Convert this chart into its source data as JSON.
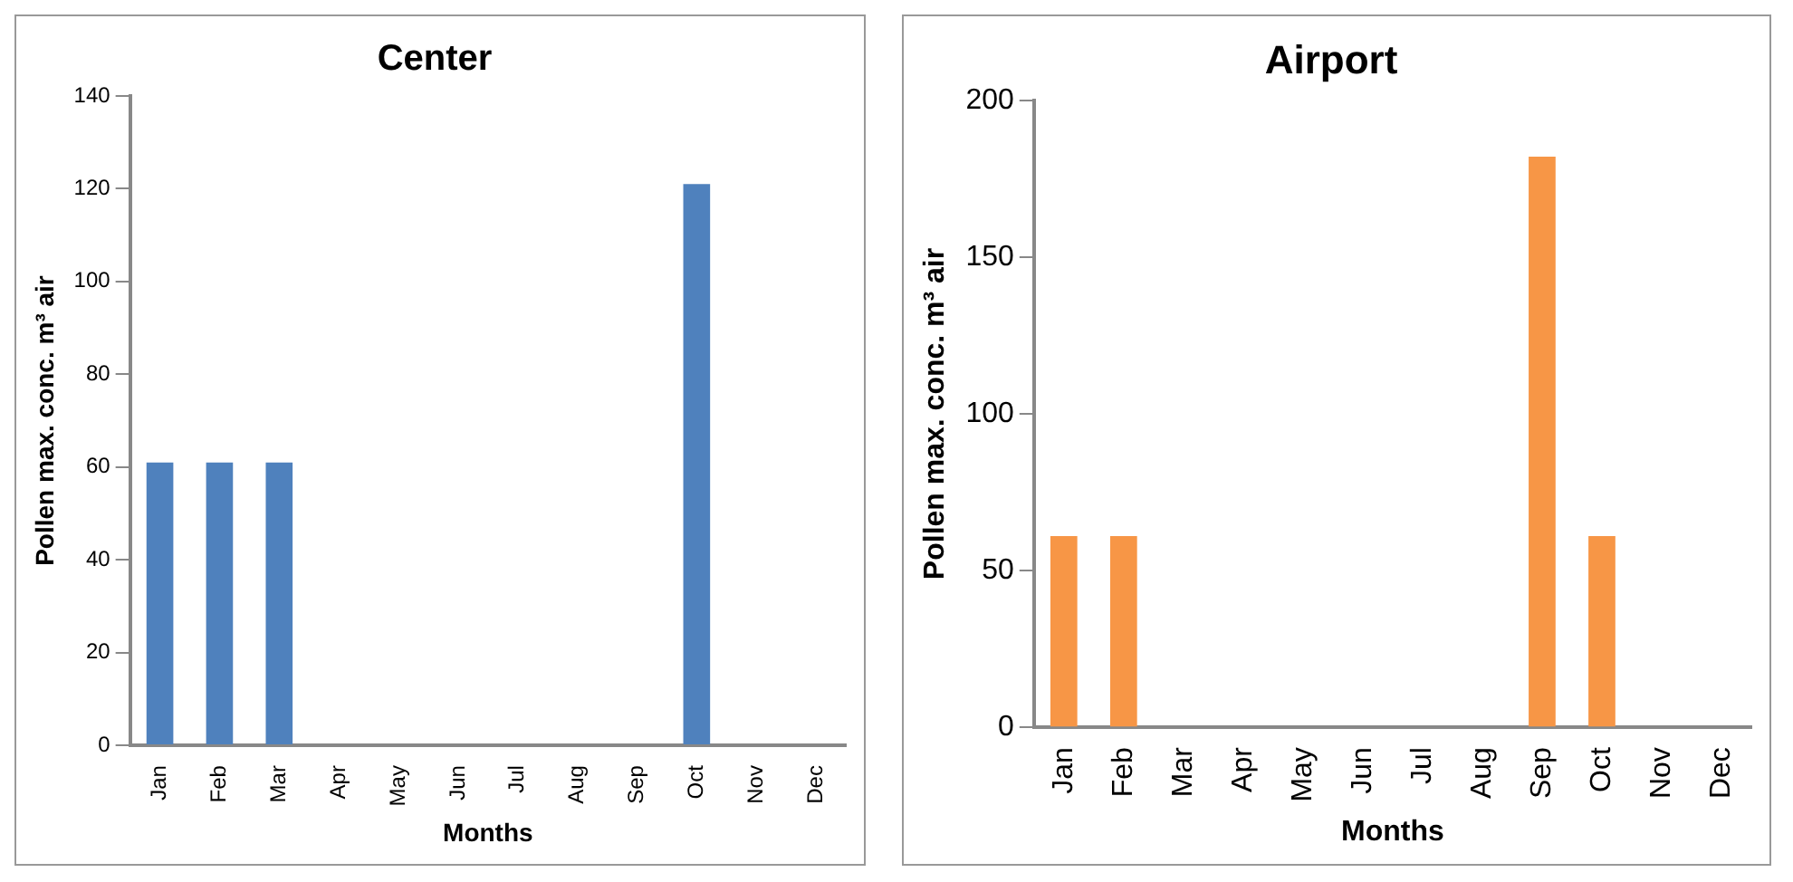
{
  "chart_data": [
    {
      "type": "bar",
      "title": "Center",
      "xlabel": "Months",
      "ylabel": "Pollen max. conc. m³ air",
      "categories": [
        "Jan",
        "Feb",
        "Mar",
        "Apr",
        "May",
        "Jun",
        "Jul",
        "Aug",
        "Sep",
        "Oct",
        "Nov",
        "Dec"
      ],
      "values": [
        61,
        61,
        61,
        0,
        0,
        0,
        0,
        0,
        0,
        121,
        0,
        0
      ],
      "color": "#4f81bd",
      "ylim": [
        0,
        140
      ],
      "yticks": [
        0,
        20,
        40,
        60,
        80,
        100,
        120,
        140
      ],
      "grid": false,
      "legend": false
    },
    {
      "type": "bar",
      "title": "Airport",
      "xlabel": "Months",
      "ylabel": "Pollen max. conc. m³ air",
      "categories": [
        "Jan",
        "Feb",
        "Mar",
        "Apr",
        "May",
        "Jun",
        "Jul",
        "Aug",
        "Sep",
        "Oct",
        "Nov",
        "Dec"
      ],
      "values": [
        61,
        61,
        0,
        0,
        0,
        0,
        0,
        0,
        182,
        61,
        0,
        0
      ],
      "color": "#f79646",
      "ylim": [
        0,
        200
      ],
      "yticks": [
        0,
        50,
        100,
        150,
        200
      ],
      "grid": false,
      "legend": false
    }
  ]
}
